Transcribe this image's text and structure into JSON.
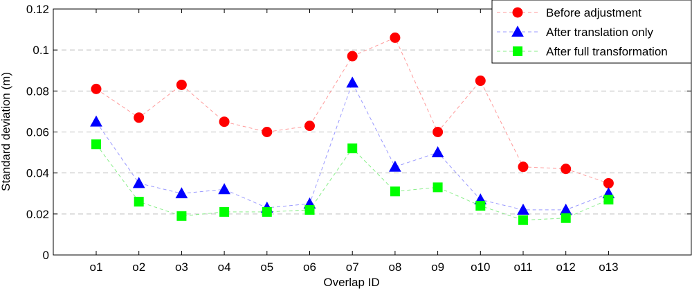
{
  "chart_data": {
    "type": "line",
    "title": "",
    "xlabel": "Overlap ID",
    "ylabel": "Standard deviation (m)",
    "categories": [
      "o1",
      "o2",
      "o3",
      "o4",
      "o5",
      "o6",
      "o7",
      "o8",
      "o9",
      "o10",
      "o11",
      "o12",
      "o13"
    ],
    "ylim": [
      0,
      0.12
    ],
    "yticks": [
      0,
      0.02,
      0.04,
      0.06,
      0.08,
      0.1,
      0.12
    ],
    "ytick_labels": [
      "0",
      "0.02",
      "0.04",
      "0.06",
      "0.08",
      "0.1",
      "0.12"
    ],
    "grid": "horizontal dashed",
    "legend_position": "top-right",
    "series": [
      {
        "name": "Before adjustment",
        "color": "#ff0000",
        "line_color": "#ff9999",
        "marker": "circle",
        "values": [
          0.081,
          0.067,
          0.083,
          0.065,
          0.06,
          0.063,
          0.097,
          0.106,
          0.06,
          0.085,
          0.043,
          0.042,
          0.035
        ]
      },
      {
        "name": "After translation only",
        "color": "#0000ff",
        "line_color": "#9999ff",
        "marker": "triangle",
        "values": [
          0.065,
          0.035,
          0.03,
          0.032,
          0.023,
          0.025,
          0.084,
          0.043,
          0.05,
          0.027,
          0.022,
          0.022,
          0.03
        ]
      },
      {
        "name": "After full transformation",
        "color": "#00ff00",
        "line_color": "#88ee88",
        "marker": "square",
        "values": [
          0.054,
          0.026,
          0.019,
          0.021,
          0.021,
          0.022,
          0.052,
          0.031,
          0.033,
          0.024,
          0.017,
          0.018,
          0.027
        ]
      }
    ]
  }
}
